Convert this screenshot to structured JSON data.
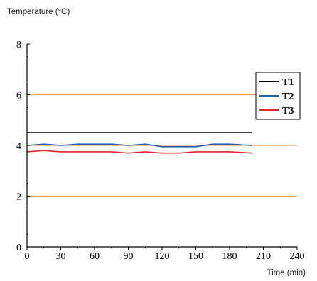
{
  "chart_data": {
    "type": "line",
    "ylabel": "Temperature (°C)",
    "xlabel": "Time (min)",
    "xlim": [
      0,
      240
    ],
    "ylim": [
      0,
      8
    ],
    "x_ticks": [
      0,
      30,
      60,
      90,
      120,
      150,
      180,
      210,
      240
    ],
    "y_ticks": [
      0,
      2,
      4,
      6,
      8
    ],
    "grid": false,
    "legend_position": "right",
    "reference_lines": [
      {
        "y": 2,
        "color": "#F0A050"
      },
      {
        "y": 4,
        "color": "#F0A050"
      },
      {
        "y": 6,
        "color": "#F0A050"
      }
    ],
    "series": [
      {
        "name": "T1",
        "color": "#000000",
        "x": [
          0,
          25,
          50,
          75,
          100,
          125,
          150,
          175,
          200
        ],
        "y": [
          4.5,
          4.5,
          4.5,
          4.5,
          4.5,
          4.5,
          4.5,
          4.5,
          4.5
        ]
      },
      {
        "name": "T2",
        "color": "#2B5FAD",
        "x": [
          0,
          15,
          30,
          45,
          60,
          75,
          90,
          105,
          120,
          135,
          150,
          165,
          180,
          200
        ],
        "y": [
          4.0,
          4.05,
          4.0,
          4.05,
          4.05,
          4.05,
          4.0,
          4.05,
          3.95,
          3.95,
          3.95,
          4.05,
          4.05,
          4.0
        ]
      },
      {
        "name": "T3",
        "color": "#E02828",
        "x": [
          0,
          15,
          30,
          45,
          60,
          75,
          90,
          105,
          120,
          135,
          150,
          165,
          180,
          200
        ],
        "y": [
          3.75,
          3.8,
          3.75,
          3.75,
          3.75,
          3.75,
          3.7,
          3.75,
          3.7,
          3.7,
          3.75,
          3.75,
          3.75,
          3.7
        ]
      }
    ]
  }
}
